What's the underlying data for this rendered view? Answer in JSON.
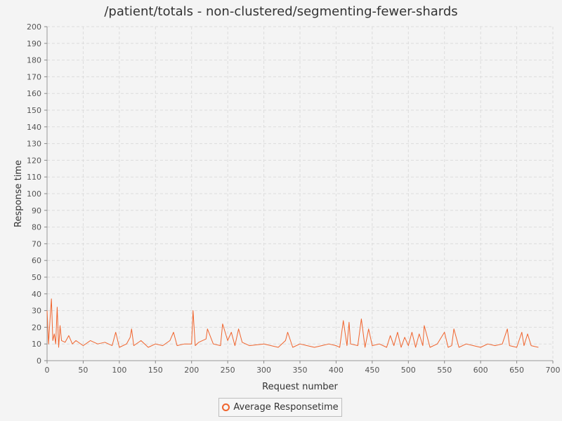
{
  "chart_data": {
    "type": "line",
    "title": "/patient/totals - non-clustered/segmenting-fewer-shards",
    "xlabel": "Request number",
    "ylabel": "Response time",
    "xlim": [
      0,
      700
    ],
    "ylim": [
      0,
      200
    ],
    "xticks": [
      0,
      50,
      100,
      150,
      200,
      250,
      300,
      350,
      400,
      450,
      500,
      550,
      600,
      650,
      700
    ],
    "yticks": [
      0,
      10,
      20,
      30,
      40,
      50,
      60,
      70,
      80,
      90,
      100,
      110,
      120,
      130,
      140,
      150,
      160,
      170,
      180,
      190,
      200
    ],
    "grid": true,
    "legend_position": "bottom",
    "series": [
      {
        "name": "Average Responsetime",
        "color": "#f0642d",
        "x": [
          0,
          2,
          4,
          6,
          8,
          10,
          12,
          14,
          16,
          18,
          20,
          25,
          30,
          35,
          40,
          50,
          60,
          70,
          80,
          90,
          95,
          100,
          110,
          115,
          117,
          120,
          130,
          140,
          150,
          160,
          170,
          175,
          180,
          190,
          200,
          202,
          205,
          210,
          220,
          222,
          230,
          240,
          243,
          250,
          255,
          260,
          265,
          270,
          280,
          300,
          320,
          330,
          333,
          340,
          350,
          360,
          370,
          380,
          390,
          400,
          405,
          410,
          415,
          418,
          420,
          430,
          435,
          440,
          445,
          450,
          460,
          470,
          475,
          480,
          485,
          490,
          495,
          500,
          505,
          510,
          515,
          520,
          522,
          530,
          540,
          550,
          555,
          560,
          563,
          570,
          580,
          590,
          600,
          610,
          620,
          630,
          637,
          640,
          650,
          657,
          660,
          665,
          670,
          680
        ],
        "y": [
          30,
          10,
          24,
          37,
          12,
          16,
          10,
          32,
          8,
          21,
          12,
          11,
          15,
          10,
          12,
          9,
          12,
          10,
          11,
          9,
          17,
          8,
          10,
          14,
          19,
          9,
          12,
          8,
          10,
          9,
          12,
          17,
          9,
          10,
          10,
          30,
          9,
          11,
          13,
          19,
          10,
          9,
          22,
          12,
          17,
          9,
          19,
          11,
          9,
          10,
          8,
          12,
          17,
          8,
          10,
          9,
          8,
          9,
          10,
          9,
          8,
          24,
          9,
          23,
          10,
          9,
          25,
          8,
          19,
          9,
          10,
          8,
          15,
          9,
          17,
          8,
          14,
          9,
          17,
          8,
          16,
          9,
          21,
          8,
          10,
          17,
          8,
          9,
          19,
          8,
          10,
          9,
          8,
          10,
          9,
          10,
          19,
          9,
          8,
          17,
          9,
          16,
          9,
          8
        ]
      }
    ]
  }
}
